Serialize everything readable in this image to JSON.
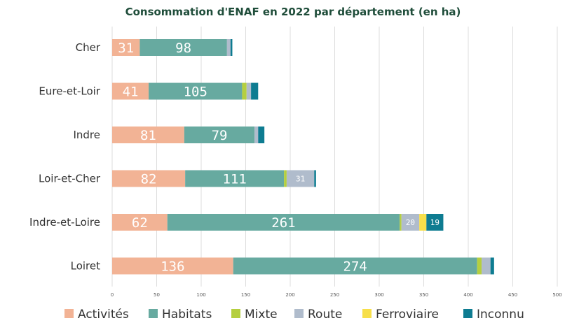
{
  "chart_data": {
    "type": "bar",
    "orientation": "horizontal",
    "stacked": true,
    "title": "Consommation d'ENAF en 2022 par département (en ha)",
    "categories": [
      "Cher",
      "Eure-et-Loir",
      "Indre",
      "Loir-et-Cher",
      "Indre-et-Loire",
      "Loiret"
    ],
    "series": [
      {
        "name": "Activités",
        "color": "#f2b395",
        "values": [
          31,
          41,
          81,
          82,
          62,
          136
        ]
      },
      {
        "name": "Habitats",
        "color": "#67aaa0",
        "values": [
          98,
          105,
          79,
          111,
          261,
          274
        ]
      },
      {
        "name": "Mixte",
        "color": "#b5cf3f",
        "values": [
          0,
          5,
          0,
          3,
          2,
          5
        ]
      },
      {
        "name": "Route",
        "color": "#b0bccc",
        "values": [
          4,
          5,
          4,
          31,
          20,
          10
        ]
      },
      {
        "name": "Ferroviaire",
        "color": "#f7df4a",
        "values": [
          0,
          0,
          0,
          0,
          8,
          0
        ]
      },
      {
        "name": "Inconnu",
        "color": "#0e7c91",
        "values": [
          2,
          8,
          7,
          2,
          19,
          4
        ]
      }
    ],
    "data_labels": [
      [
        31,
        98,
        null,
        null,
        null,
        null
      ],
      [
        41,
        105,
        null,
        null,
        null,
        null
      ],
      [
        81,
        79,
        null,
        null,
        null,
        null
      ],
      [
        82,
        111,
        null,
        31,
        null,
        null
      ],
      [
        62,
        261,
        null,
        20,
        null,
        19
      ],
      [
        136,
        274,
        null,
        null,
        null,
        null
      ]
    ],
    "xlim": [
      0,
      500
    ],
    "xticks": [
      0,
      50,
      100,
      150,
      200,
      250,
      300,
      350,
      400,
      450,
      500
    ],
    "grid": true,
    "legend": "bottom",
    "xlabel": "",
    "ylabel": ""
  }
}
